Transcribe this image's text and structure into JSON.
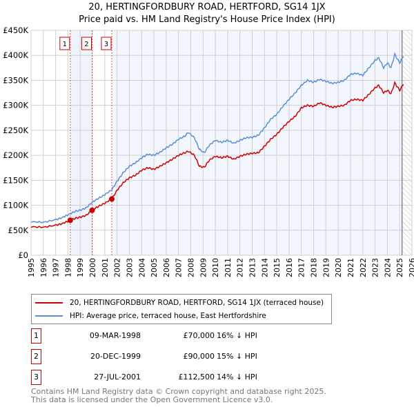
{
  "chart_data": {
    "type": "line",
    "title": "20, HERTINGFORDBURY ROAD, HERTFORD, SG14 1JX",
    "subtitle": "Price paid vs. HM Land Registry's House Price Index (HPI)",
    "xlim": [
      1995,
      2026
    ],
    "ylim": [
      0,
      450000
    ],
    "x_ticks": [
      "1995",
      "1996",
      "1997",
      "1998",
      "1999",
      "2000",
      "2001",
      "2002",
      "2003",
      "2004",
      "2005",
      "2006",
      "2007",
      "2008",
      "2009",
      "2010",
      "2011",
      "2012",
      "2013",
      "2014",
      "2015",
      "2016",
      "2017",
      "2018",
      "2019",
      "2020",
      "2021",
      "2022",
      "2023",
      "2024",
      "2025",
      "2026"
    ],
    "y_ticks": [
      {
        "v": 0,
        "label": "£0"
      },
      {
        "v": 50000,
        "label": "£50K"
      },
      {
        "v": 100000,
        "label": "£100K"
      },
      {
        "v": 150000,
        "label": "£150K"
      },
      {
        "v": 200000,
        "label": "£200K"
      },
      {
        "v": 250000,
        "label": "£250K"
      },
      {
        "v": 300000,
        "label": "£300K"
      },
      {
        "v": 350000,
        "label": "£350K"
      },
      {
        "v": 400000,
        "label": "£400K"
      },
      {
        "v": 450000,
        "label": "£450K"
      }
    ],
    "grid": true,
    "forecast_start": 2025.2,
    "series": [
      {
        "name": "20, HERTINGFORDBURY ROAD, HERTFORD, SG14 1JX (terraced house)",
        "color": "#cc0000",
        "x": [
          1995,
          1996,
          1997,
          1997.5,
          1998.19,
          1998.6,
          1999,
          1999.5,
          1999.97,
          2000.5,
          2001,
          2001.57,
          2002,
          2002.5,
          2003,
          2003.5,
          2004,
          2004.5,
          2005,
          2005.5,
          2006,
          2006.5,
          2007,
          2007.5,
          2007.8,
          2008.3,
          2008.7,
          2009.1,
          2009.5,
          2010,
          2010.5,
          2011,
          2011.5,
          2012,
          2012.5,
          2013,
          2013.5,
          2014,
          2014.5,
          2015,
          2015.5,
          2016,
          2016.5,
          2017,
          2017.5,
          2018,
          2018.5,
          2019,
          2019.5,
          2020,
          2020.5,
          2021,
          2021.5,
          2022,
          2022.5,
          2023,
          2023.3,
          2023.7,
          2024,
          2024.3,
          2024.6,
          2025,
          2025.3
        ],
        "y": [
          57000,
          56000,
          60000,
          63000,
          70000,
          74000,
          76000,
          80000,
          90000,
          98000,
          104000,
          112500,
          130000,
          145000,
          155000,
          160000,
          170000,
          175000,
          172000,
          178000,
          185000,
          192000,
          200000,
          205000,
          208000,
          200000,
          178000,
          176000,
          190000,
          198000,
          195000,
          198000,
          192000,
          198000,
          202000,
          204000,
          205000,
          218000,
          232000,
          242000,
          256000,
          268000,
          278000,
          295000,
          300000,
          298000,
          305000,
          300000,
          296000,
          298000,
          300000,
          310000,
          312000,
          310000,
          322000,
          335000,
          340000,
          325000,
          330000,
          323000,
          345000,
          330000,
          342000
        ]
      },
      {
        "name": "HPI: Average price, terraced house, East Hertfordshire",
        "color": "#5b8fd4",
        "x": [
          1995,
          1996,
          1997,
          1997.5,
          1998.19,
          1998.6,
          1999,
          1999.5,
          1999.97,
          2000.5,
          2001,
          2001.57,
          2002,
          2002.5,
          2003,
          2003.5,
          2004,
          2004.5,
          2005,
          2005.5,
          2006,
          2006.5,
          2007,
          2007.5,
          2007.8,
          2008.3,
          2008.7,
          2009.1,
          2009.5,
          2010,
          2010.5,
          2011,
          2011.5,
          2012,
          2012.5,
          2013,
          2013.5,
          2014,
          2014.5,
          2015,
          2015.5,
          2016,
          2016.5,
          2017,
          2017.5,
          2018,
          2018.5,
          2019,
          2019.5,
          2020,
          2020.5,
          2021,
          2021.5,
          2022,
          2022.5,
          2023,
          2023.3,
          2023.7,
          2024,
          2024.3,
          2024.6,
          2025,
          2025.3
        ],
        "y": [
          67000,
          66000,
          71000,
          75000,
          83000,
          88000,
          90000,
          95000,
          106000,
          114000,
          121000,
          131000,
          148000,
          165000,
          178000,
          185000,
          195000,
          202000,
          200000,
          206000,
          215000,
          222000,
          232000,
          238000,
          246000,
          235000,
          212000,
          205000,
          220000,
          230000,
          226000,
          230000,
          224000,
          230000,
          235000,
          236000,
          240000,
          255000,
          272000,
          282000,
          298000,
          312000,
          325000,
          340000,
          350000,
          346000,
          352000,
          348000,
          344000,
          346000,
          350000,
          362000,
          364000,
          360000,
          375000,
          390000,
          395000,
          375000,
          385000,
          375000,
          402000,
          385000,
          398000
        ]
      }
    ],
    "sales": [
      {
        "label": "1",
        "x": 1998.19,
        "y": 70000
      },
      {
        "label": "2",
        "x": 1999.97,
        "y": 90000
      },
      {
        "label": "3",
        "x": 2001.57,
        "y": 112500
      }
    ]
  },
  "legend": {
    "red": "20, HERTINGFORDBURY ROAD, HERTFORD, SG14 1JX (terraced house)",
    "blue": "HPI: Average price, terraced house, East Hertfordshire"
  },
  "transactions": [
    {
      "num": "1",
      "date": "09-MAR-1998",
      "price": "£70,000",
      "hpi": "16% ↓ HPI"
    },
    {
      "num": "2",
      "date": "20-DEC-1999",
      "price": "£90,000",
      "hpi": "15% ↓ HPI"
    },
    {
      "num": "3",
      "date": "27-JUL-2001",
      "price": "£112,500",
      "hpi": "14% ↓ HPI"
    }
  ],
  "footer": {
    "line1": "Contains HM Land Registry data © Crown copyright and database right 2025.",
    "line2": "This data is licensed under the Open Government Licence v3.0."
  }
}
